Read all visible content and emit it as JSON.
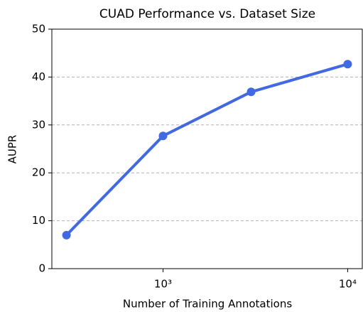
{
  "chart_data": {
    "type": "line",
    "title": "CUAD Performance vs. Dataset Size",
    "x_label": "Number of Training Annotations",
    "y_label": "AUPR",
    "x": [
      300,
      1000,
      3000,
      10000
    ],
    "series": [
      {
        "name": "AUPR",
        "color": "#4169e1",
        "values": [
          7,
          27.7,
          36.9,
          42.7
        ]
      }
    ],
    "xscale": "log",
    "xlim": [
      250,
      12000
    ],
    "xticks": [
      {
        "value": 1000,
        "label": "10³"
      },
      {
        "value": 10000,
        "label": "10⁴"
      }
    ],
    "ylim": [
      0,
      50
    ],
    "yticks": [
      0,
      10,
      20,
      30,
      40,
      50
    ],
    "grid": true
  }
}
